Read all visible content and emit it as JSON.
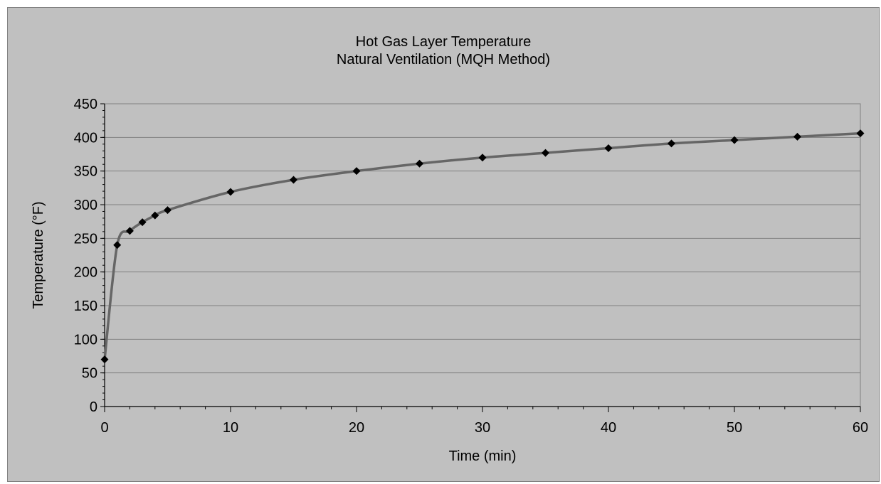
{
  "chart_data": {
    "type": "line",
    "title": "Hot Gas Layer Temperature",
    "subtitle": "Natural Ventilation (MQH Method)",
    "xlabel": "Time (min)",
    "ylabel": "Temperature (°F)",
    "xlim": [
      0,
      60
    ],
    "ylim": [
      0,
      450
    ],
    "xticks": [
      0,
      10,
      20,
      30,
      40,
      50,
      60
    ],
    "yticks": [
      0,
      50,
      100,
      150,
      200,
      250,
      300,
      350,
      400,
      450
    ],
    "grid": "horizontal",
    "legend": "none",
    "colors": {
      "plot_area": "#c0c0c0",
      "line": "#666666",
      "marker": "#000000",
      "gridline": "#808080"
    },
    "marker": "diamond",
    "series": [
      {
        "x": [
          0,
          1,
          2,
          3,
          4,
          5,
          10,
          15,
          20,
          25,
          30,
          35,
          40,
          45,
          50,
          55,
          60
        ],
        "y": [
          70,
          240,
          261,
          274,
          284,
          292,
          319,
          337,
          350,
          361,
          370,
          377,
          384,
          391,
          396,
          401,
          406
        ]
      }
    ]
  }
}
